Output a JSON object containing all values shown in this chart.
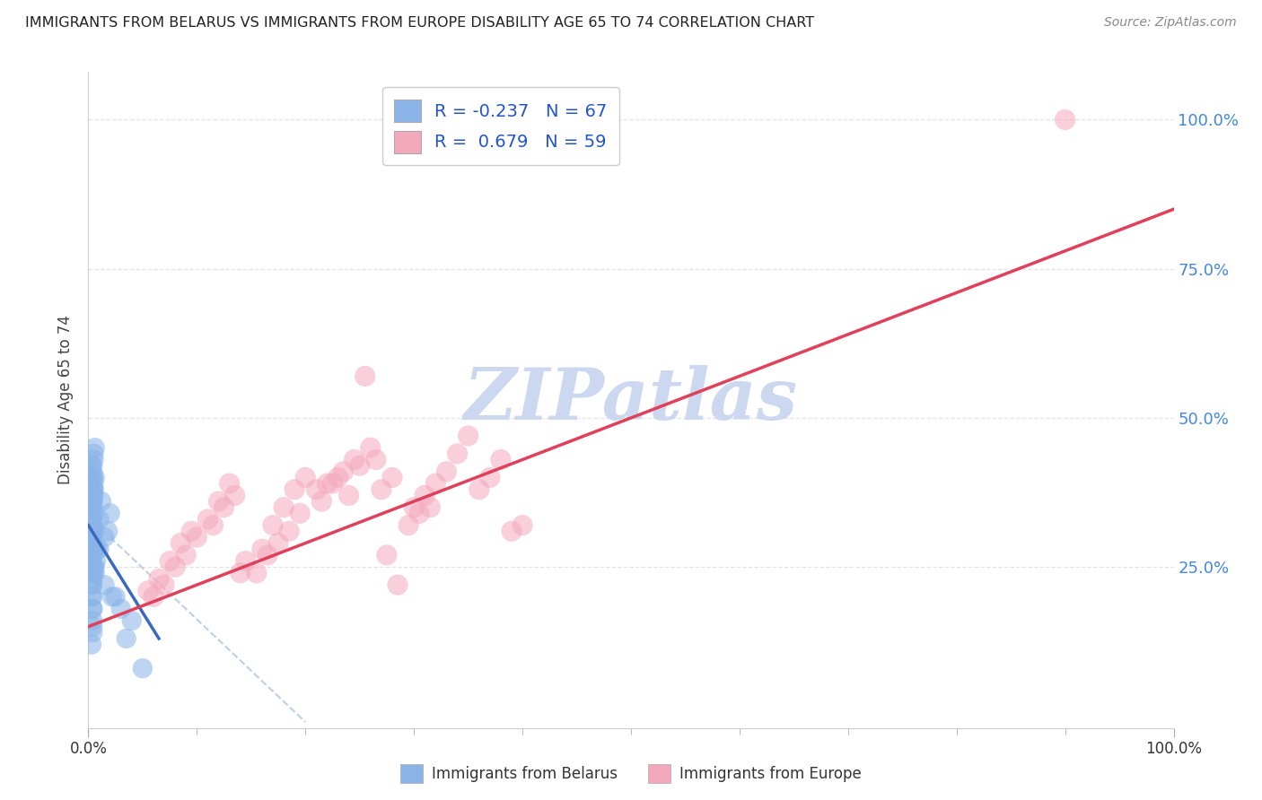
{
  "title": "IMMIGRANTS FROM BELARUS VS IMMIGRANTS FROM EUROPE DISABILITY AGE 65 TO 74 CORRELATION CHART",
  "source": "Source: ZipAtlas.com",
  "ylabel": "Disability Age 65 to 74",
  "xlim": [
    0,
    1.0
  ],
  "ylim": [
    -0.02,
    1.08
  ],
  "legend1_R": "-0.237",
  "legend1_N": "67",
  "legend2_R": "0.679",
  "legend2_N": "59",
  "scatter_belarus": {
    "x": [
      0.005,
      0.003,
      0.004,
      0.006,
      0.004,
      0.003,
      0.005,
      0.004,
      0.003,
      0.005,
      0.004,
      0.003,
      0.004,
      0.005,
      0.004,
      0.005,
      0.004,
      0.004,
      0.003,
      0.005,
      0.004,
      0.005,
      0.004,
      0.004,
      0.005,
      0.004,
      0.004,
      0.003,
      0.005,
      0.004,
      0.006,
      0.005,
      0.004,
      0.005,
      0.004,
      0.003,
      0.004,
      0.005,
      0.004,
      0.003,
      0.004,
      0.005,
      0.003,
      0.003,
      0.004,
      0.004,
      0.004,
      0.004,
      0.004,
      0.003,
      0.012,
      0.01,
      0.015,
      0.008,
      0.006,
      0.02,
      0.018,
      0.01,
      0.007,
      0.006,
      0.025,
      0.03,
      0.015,
      0.022,
      0.04,
      0.035,
      0.05
    ],
    "y": [
      0.38,
      0.42,
      0.35,
      0.4,
      0.32,
      0.36,
      0.28,
      0.3,
      0.33,
      0.25,
      0.22,
      0.2,
      0.18,
      0.24,
      0.27,
      0.31,
      0.29,
      0.23,
      0.26,
      0.34,
      0.37,
      0.39,
      0.41,
      0.36,
      0.43,
      0.38,
      0.4,
      0.35,
      0.32,
      0.28,
      0.45,
      0.44,
      0.42,
      0.38,
      0.36,
      0.3,
      0.33,
      0.37,
      0.4,
      0.35,
      0.27,
      0.31,
      0.24,
      0.22,
      0.2,
      0.18,
      0.15,
      0.16,
      0.14,
      0.12,
      0.36,
      0.33,
      0.3,
      0.28,
      0.25,
      0.34,
      0.31,
      0.28,
      0.26,
      0.24,
      0.2,
      0.18,
      0.22,
      0.2,
      0.16,
      0.13,
      0.08
    ]
  },
  "scatter_europe": {
    "x": [
      0.055,
      0.065,
      0.075,
      0.085,
      0.095,
      0.11,
      0.12,
      0.13,
      0.14,
      0.06,
      0.07,
      0.08,
      0.09,
      0.1,
      0.115,
      0.125,
      0.135,
      0.145,
      0.16,
      0.17,
      0.155,
      0.165,
      0.175,
      0.185,
      0.195,
      0.21,
      0.22,
      0.23,
      0.24,
      0.25,
      0.18,
      0.19,
      0.2,
      0.215,
      0.225,
      0.235,
      0.245,
      0.26,
      0.27,
      0.28,
      0.255,
      0.265,
      0.275,
      0.285,
      0.3,
      0.31,
      0.32,
      0.33,
      0.34,
      0.35,
      0.295,
      0.305,
      0.315,
      0.36,
      0.37,
      0.38,
      0.39,
      0.4,
      0.9
    ],
    "y": [
      0.21,
      0.23,
      0.26,
      0.29,
      0.31,
      0.33,
      0.36,
      0.39,
      0.24,
      0.2,
      0.22,
      0.25,
      0.27,
      0.3,
      0.32,
      0.35,
      0.37,
      0.26,
      0.28,
      0.32,
      0.24,
      0.27,
      0.29,
      0.31,
      0.34,
      0.38,
      0.39,
      0.4,
      0.37,
      0.42,
      0.35,
      0.38,
      0.4,
      0.36,
      0.39,
      0.41,
      0.43,
      0.45,
      0.38,
      0.4,
      0.57,
      0.43,
      0.27,
      0.22,
      0.35,
      0.37,
      0.39,
      0.41,
      0.44,
      0.47,
      0.32,
      0.34,
      0.35,
      0.38,
      0.4,
      0.43,
      0.31,
      0.32,
      1.0
    ]
  },
  "belarus_color": "#8ab4e8",
  "europe_color": "#f4a8bc",
  "belarus_line_color": "#3a6abf",
  "europe_line_color": "#e0405a",
  "ref_line_color": "#b0c8e0",
  "grid_color": "#e0e0e0",
  "background_color": "#ffffff",
  "title_color": "#222222",
  "right_tick_color": "#4488dd",
  "watermark": "ZIPatlas",
  "watermark_color": "#ccd8f0",
  "europe_line_x0": 0.0,
  "europe_line_y0": 0.15,
  "europe_line_x1": 1.0,
  "europe_line_y1": 0.85,
  "belarus_line_x0": 0.0,
  "belarus_line_y0": 0.32,
  "belarus_line_x1": 0.065,
  "belarus_line_y1": 0.13,
  "ref_line_x0": 0.02,
  "ref_line_y0": 0.3,
  "ref_line_x1": 0.2,
  "ref_line_y1": -0.01
}
